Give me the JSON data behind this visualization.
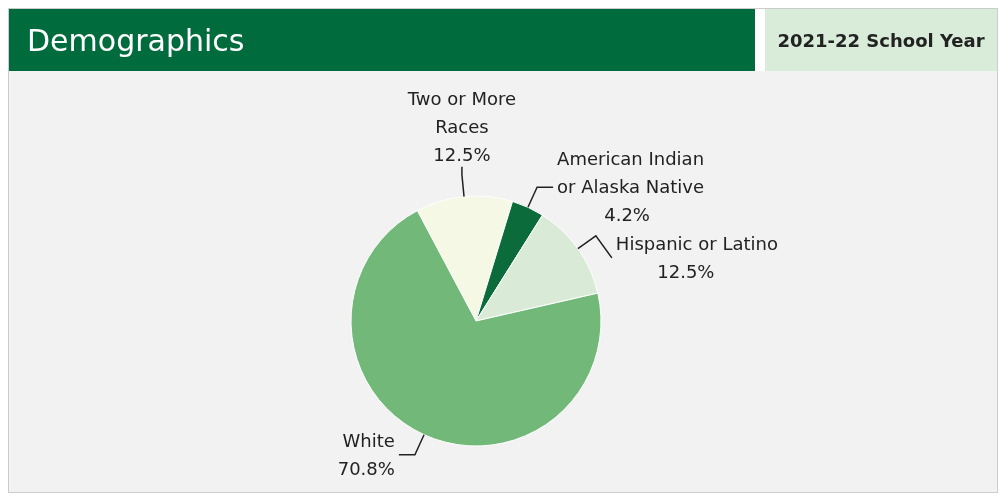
{
  "chart_data": {
    "type": "pie",
    "title": "Demographics",
    "subtitle": "2021-22 School Year",
    "categories": [
      "Two or More Races",
      "American Indian or Alaska Native",
      "Hispanic or Latino",
      "White"
    ],
    "values": [
      12.5,
      4.2,
      12.5,
      70.8
    ],
    "value_labels": [
      "12.5%",
      "4.2%",
      "12.5%",
      "70.8%"
    ],
    "colors": [
      "#f6f8e6",
      "#0b6b3a",
      "#d9ebd6",
      "#72b979"
    ],
    "legend": false
  }
}
